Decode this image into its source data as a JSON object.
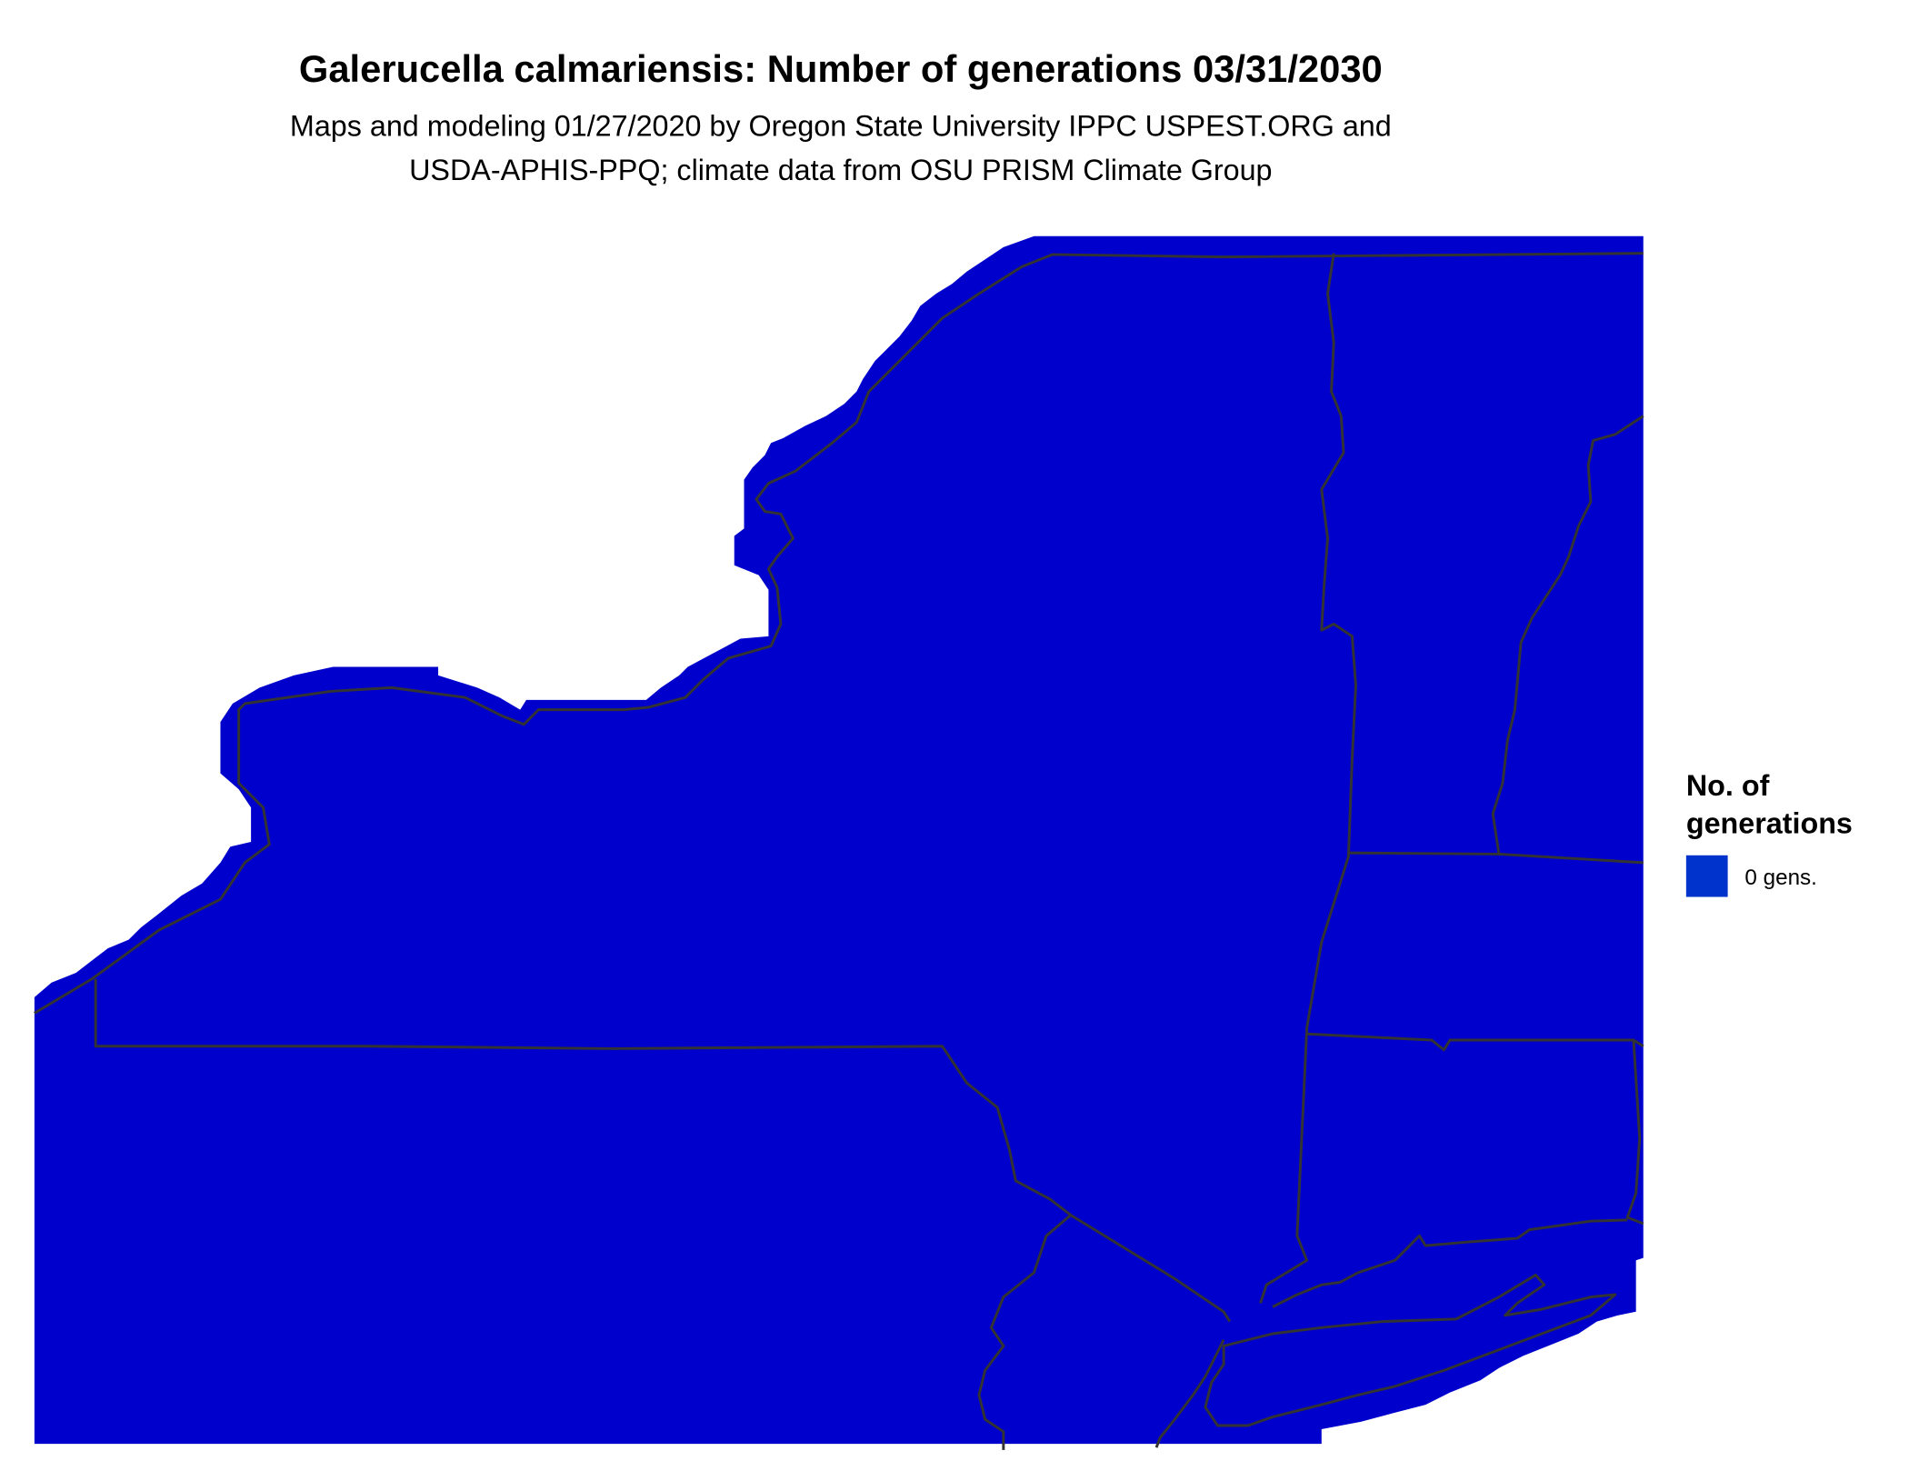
{
  "title": "Galerucella calmariensis: Number of generations 03/31/2030",
  "subtitle_line1": "Maps and modeling 01/27/2020 by Oregon State University IPPC USPEST.ORG and",
  "subtitle_line2": "USDA-APHIS-PPQ; climate data from OSU PRISM Climate Group",
  "map": {
    "fill_color": "#0000cd",
    "border_color": "#333333"
  },
  "legend": {
    "title_line1": "No. of",
    "title_line2": "generations",
    "items": [
      {
        "label": "0 gens.",
        "color": "#0033cc"
      }
    ]
  }
}
